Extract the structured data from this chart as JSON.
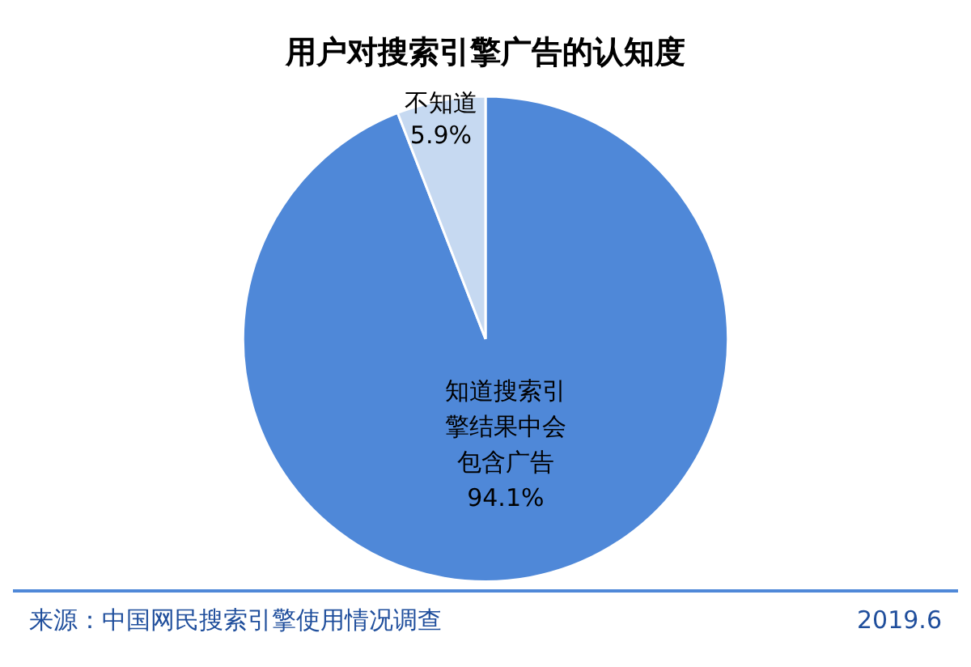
{
  "chart_data": {
    "type": "pie",
    "title": "用户对搜索引擎广告的认知度",
    "categories": [
      "知道搜索引擎结果中会包含广告",
      "不知道"
    ],
    "values": [
      94.1,
      5.9
    ],
    "value_labels": [
      "94.1%",
      "5.9%"
    ],
    "colors": [
      "#4f88d8",
      "#c6d9f1"
    ],
    "annotations": [
      "来源：中国网民搜索引擎使用情况调查",
      "2019.6"
    ]
  }
}
